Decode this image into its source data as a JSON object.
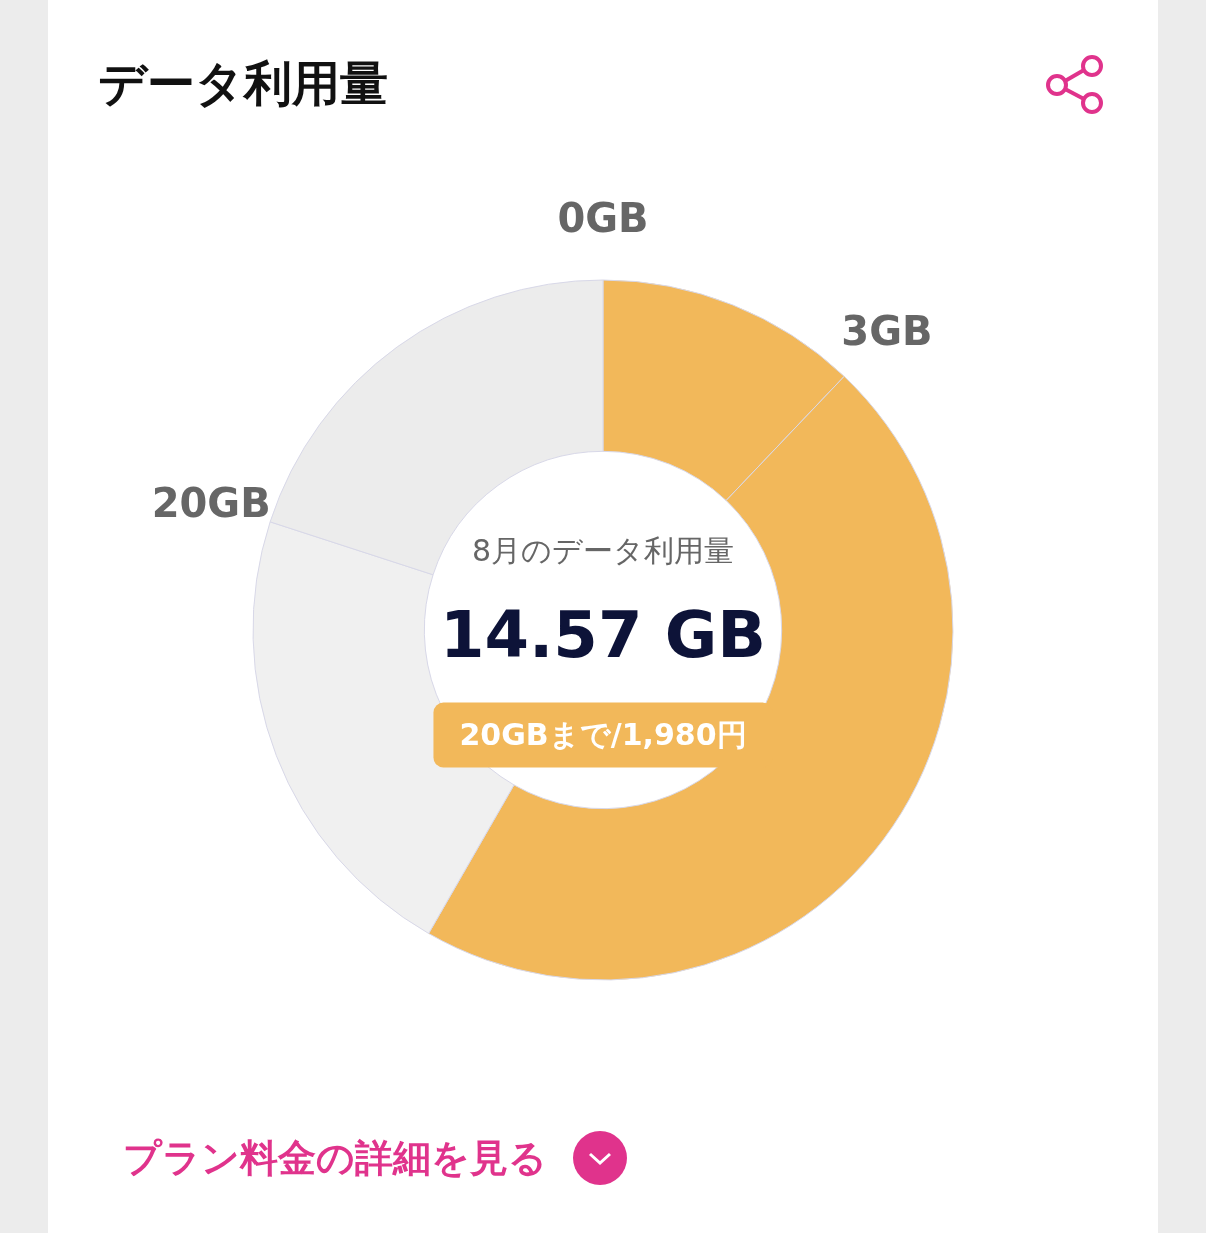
{
  "chart_data": {
    "type": "donut",
    "title": "データ利用量",
    "categories": [
      "0GB",
      "3GB",
      null,
      "20GB"
    ],
    "values": [
      12.1,
      46.2,
      21.7,
      20
    ],
    "colors": [
      "#f2b85a",
      "#f2b85a",
      "#f0f0f0",
      "#ececec"
    ],
    "legend": false,
    "annotations": [
      "8月のデータ利用量",
      "14.57 GB",
      "20GBまで/1,980円",
      "プラン料金の詳細を見る"
    ]
  }
}
